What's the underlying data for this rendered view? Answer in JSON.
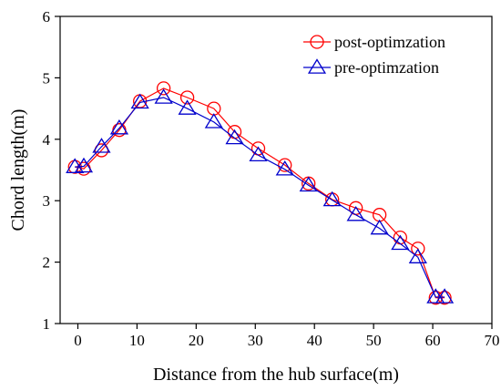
{
  "chart_data": {
    "type": "line",
    "xlabel": "Distance from the hub surface(m)",
    "ylabel": "Chord length(m)",
    "xlim": [
      -3,
      70
    ],
    "ylim": [
      1,
      6
    ],
    "xticks": [
      0,
      10,
      20,
      30,
      40,
      50,
      60,
      70
    ],
    "yticks": [
      1,
      2,
      3,
      4,
      5,
      6
    ],
    "grid": false,
    "legend_position": "top-right",
    "series": [
      {
        "name": "post-optimzation",
        "color": "#ff0000",
        "marker": "circle",
        "x": [
          -0.5,
          1,
          4,
          7,
          10.5,
          14.5,
          18.5,
          23,
          26.5,
          30.5,
          35,
          39,
          43,
          47,
          51,
          54.5,
          57.5,
          60.5,
          62
        ],
        "y": [
          3.55,
          3.52,
          3.82,
          4.15,
          4.62,
          4.83,
          4.68,
          4.5,
          4.12,
          3.85,
          3.58,
          3.28,
          3.02,
          2.88,
          2.77,
          2.4,
          2.22,
          1.42,
          1.42
        ]
      },
      {
        "name": "pre-optimzation",
        "color": "#0000cc",
        "marker": "triangle",
        "x": [
          -0.5,
          1,
          4,
          7,
          10.5,
          14.5,
          18.5,
          23,
          26.5,
          30.5,
          35,
          39,
          43,
          47,
          51,
          54.5,
          57.5,
          60.5,
          62
        ],
        "y": [
          3.55,
          3.56,
          3.88,
          4.18,
          4.6,
          4.68,
          4.5,
          4.28,
          4.02,
          3.74,
          3.51,
          3.25,
          3.01,
          2.77,
          2.55,
          2.3,
          2.08,
          1.43,
          1.43
        ]
      }
    ]
  }
}
